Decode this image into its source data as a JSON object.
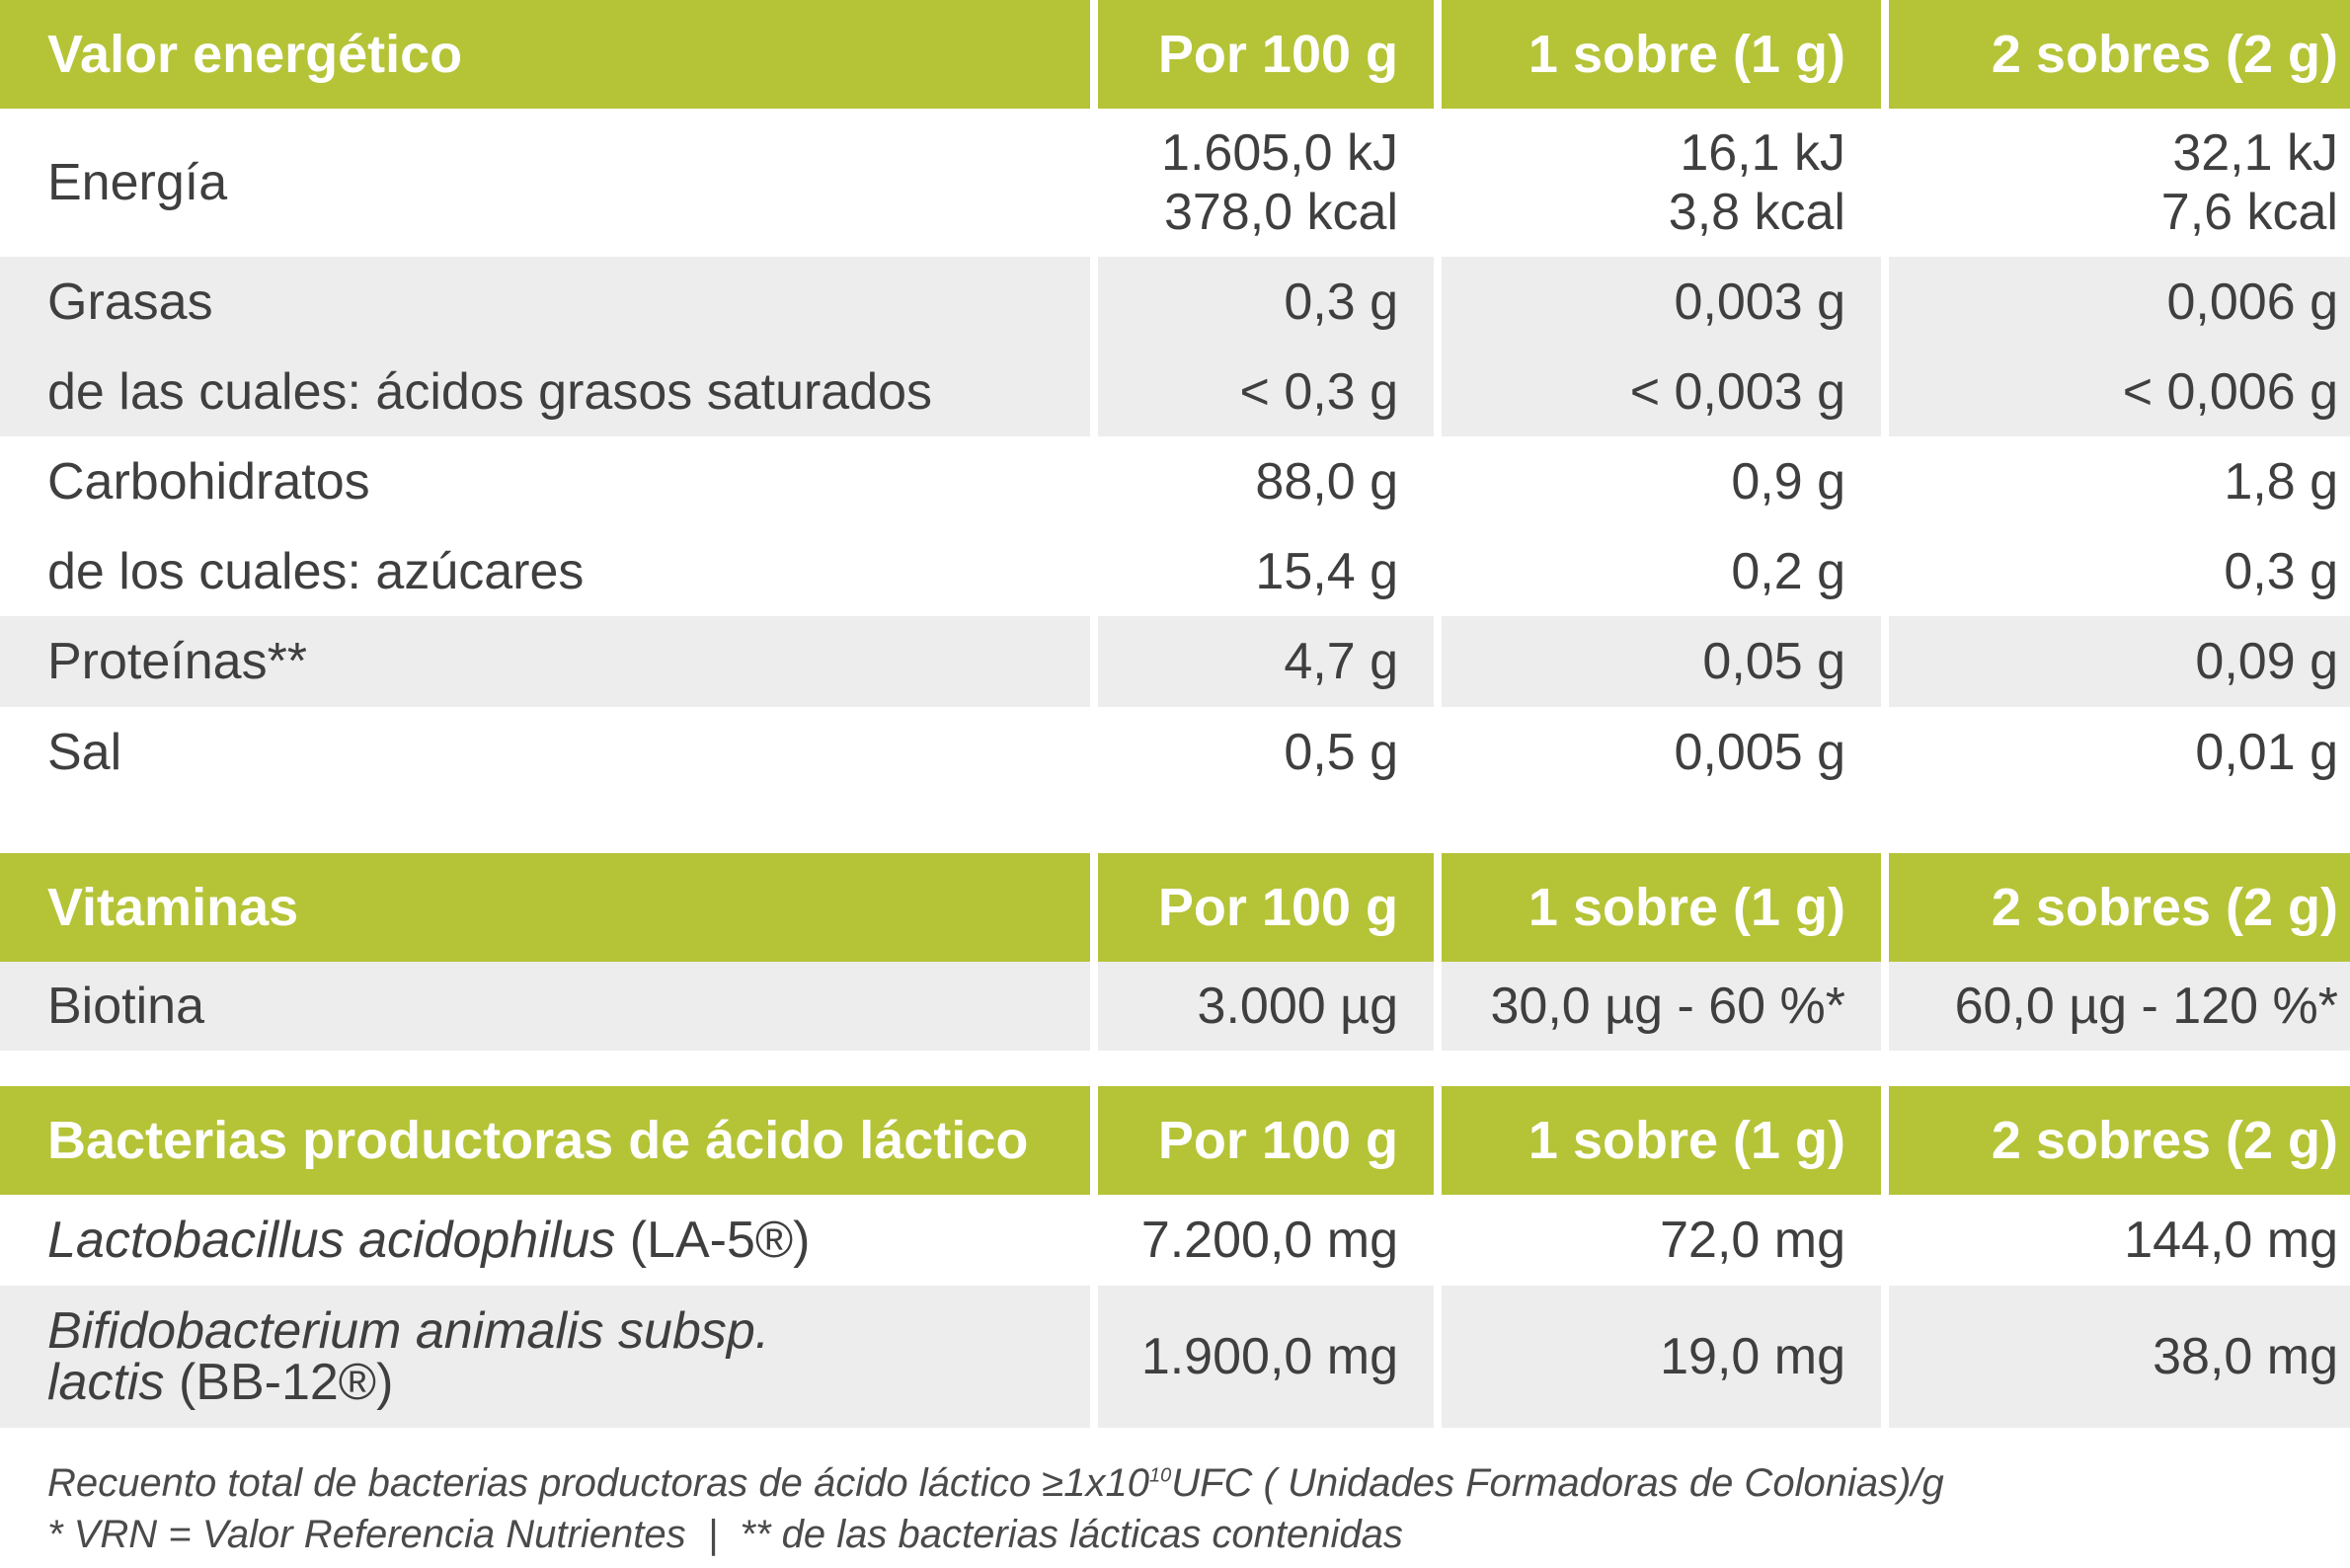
{
  "energy_table": {
    "header": {
      "label": "Valor energético",
      "col1": "Por 100 g",
      "col2": "1 sobre (1 g)",
      "col3": "2 sobres (2 g)"
    },
    "rows": [
      {
        "label": "Energía",
        "col1": [
          "1.605,0 kJ",
          "378,0 kcal"
        ],
        "col2": [
          "16,1 kJ",
          "3,8 kcal"
        ],
        "col3": [
          "32,1 kJ",
          "7,6 kcal"
        ]
      },
      {
        "label": [
          "Grasas",
          "de las cuales: ácidos grasos saturados"
        ],
        "col1": [
          "0,3 g",
          "< 0,3 g"
        ],
        "col2": [
          "0,003 g",
          "< 0,003 g"
        ],
        "col3": [
          "0,006 g",
          "< 0,006 g"
        ]
      },
      {
        "label": [
          "Carbohidratos",
          "de los cuales: azúcares"
        ],
        "col1": [
          "88,0 g",
          "15,4 g"
        ],
        "col2": [
          "0,9 g",
          "0,2 g"
        ],
        "col3": [
          "1,8 g",
          "0,3 g"
        ]
      },
      {
        "label": "Proteínas**",
        "col1": "4,7 g",
        "col2": "0,05 g",
        "col3": "0,09 g"
      },
      {
        "label": "Sal",
        "col1": "0,5 g",
        "col2": "0,005 g",
        "col3": "0,01 g"
      }
    ]
  },
  "vitamins_table": {
    "header": {
      "label": "Vitaminas",
      "col1": "Por 100 g",
      "col2": "1 sobre (1 g)",
      "col3": "2 sobres (2 g)"
    },
    "rows": [
      {
        "label": "Biotina",
        "col1": "3.000 µg",
        "col2": "30,0 µg - 60 %*",
        "col3": "60,0 µg - 120 %*"
      }
    ]
  },
  "bacteria_table": {
    "header": {
      "label": "Bacterias productoras de ácido láctico",
      "col1": "Por 100 g",
      "col2": "1 sobre (1 g)",
      "col3": "2 sobres (2 g)"
    },
    "rows": [
      {
        "label_italic": "Lactobacillus acidophilus",
        "label_suffix": "(LA-5®)",
        "col1": "7.200,0 mg",
        "col2": "72,0 mg",
        "col3": "144,0 mg"
      },
      {
        "label_italic": "Bifidobacterium animalis subsp.",
        "label_italic2": "lactis",
        "label_suffix": "(BB-12®)",
        "col1": "1.900,0 mg",
        "col2": "19,0 mg",
        "col3": "38,0 mg"
      }
    ]
  },
  "footnotes": {
    "line1_pre": "Recuento total de bacterias productoras de ácido láctico ≥1x10",
    "line1_exp": "10",
    "line1_post": "UFC ( Unidades Formadoras de Colonias)/g",
    "line2": "* VRN = Valor Referencia Nutrientes  |  ** de las bacterias lácticas contenidas"
  }
}
